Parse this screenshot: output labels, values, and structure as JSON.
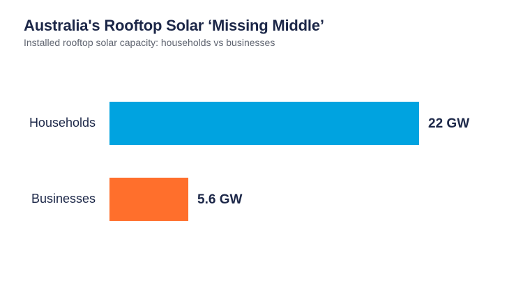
{
  "chart_data": {
    "type": "bar",
    "orientation": "horizontal",
    "title": "Australia's Rooftop Solar ‘Missing Middle’",
    "subtitle": "Installed rooftop solar capacity: households vs businesses",
    "categories": [
      "Households",
      "Businesses"
    ],
    "values": [
      22,
      5.6
    ],
    "value_labels": [
      "22 GW",
      "5.6 GW"
    ],
    "colors": [
      "#00a3e0",
      "#ff6f2c"
    ],
    "xlim": [
      0,
      22
    ],
    "grid": false,
    "legend": "none"
  }
}
